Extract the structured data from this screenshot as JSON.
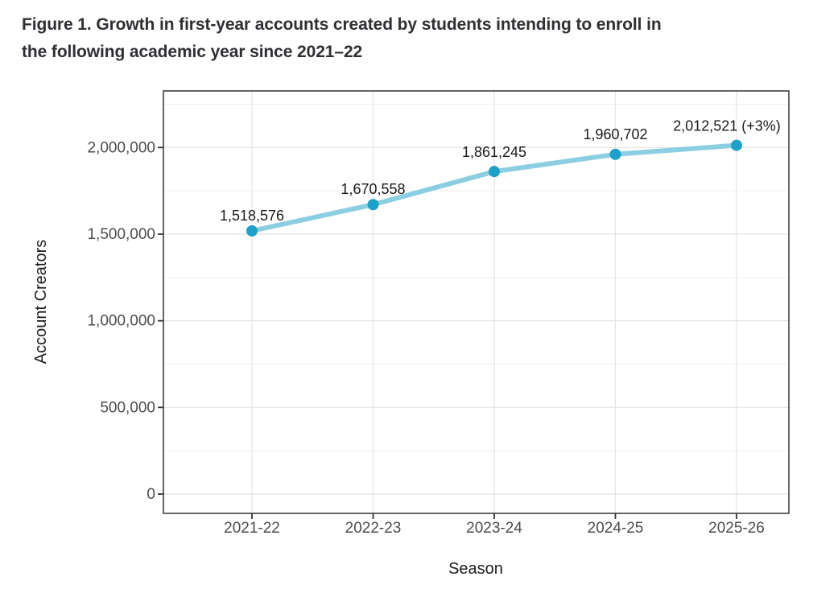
{
  "figure": {
    "title_line1": "Figure 1. Growth in first-year accounts created by students intending to enroll in",
    "title_line2": "the following academic year since 2021–22"
  },
  "chart_data": {
    "type": "line",
    "title": "Figure 1. Growth in first-year accounts created by students intending to enroll in the following academic year since 2021–22",
    "xlabel": "Season",
    "ylabel": "Account Creators",
    "categories": [
      "2021-22",
      "2022-23",
      "2023-24",
      "2024-25",
      "2025-26"
    ],
    "series": [
      {
        "name": "Account Creators",
        "values": [
          1518576,
          1670558,
          1861245,
          1960702,
          2012521
        ],
        "point_labels": [
          "1,518,576",
          "1,670,558",
          "1,861,245",
          "1,960,702",
          "2,012,521 (+3%)"
        ]
      }
    ],
    "ylim": [
      0,
      2250000
    ],
    "y_ticks": [
      {
        "value": 0,
        "label": "0"
      },
      {
        "value": 500000,
        "label": "500,000"
      },
      {
        "value": 1000000,
        "label": "1,000,000"
      },
      {
        "value": 1500000,
        "label": "1,500,000"
      },
      {
        "value": 2000000,
        "label": "2,000,000"
      }
    ],
    "y_minor_ticks": [
      250000,
      750000,
      1250000,
      1750000,
      2250000
    ],
    "grid": true,
    "legend_position": "none",
    "colors": {
      "line": "#8CCEE1",
      "point": "#1FA0C8",
      "grid_major": "#E4E4E4",
      "grid_minor": "#EFEFEF",
      "panel_border": "#3F3F3F",
      "tick_mark": "#333333",
      "tick_label": "#4D4D4D",
      "data_label": "#1A1A1A",
      "axis_title": "#1C1C1C",
      "title": "#2F2F34"
    }
  }
}
